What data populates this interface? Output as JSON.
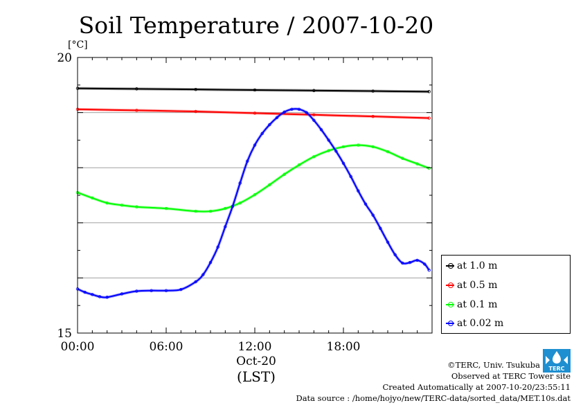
{
  "chart_data": {
    "type": "line",
    "title": "Soil Temperature / 2007-10-20",
    "ylabel": "[°C]",
    "xlabel_date": "Oct-20",
    "xlabel_tz": "(LST)",
    "ylim": [
      15,
      20
    ],
    "xlim": [
      0,
      24
    ],
    "y_ticks": [
      "15",
      "20"
    ],
    "x_ticks": [
      {
        "x": 0,
        "label": "00:00"
      },
      {
        "x": 6,
        "label": "06:00"
      },
      {
        "x": 12,
        "label": "12:00"
      },
      {
        "x": 18,
        "label": "18:00"
      }
    ],
    "grid": "horizontal",
    "legend_position": "right",
    "series": [
      {
        "name": "at 1.0 m",
        "color": "#000000",
        "x": [
          0,
          4,
          8,
          12,
          16,
          20,
          23.8
        ],
        "y": [
          19.44,
          19.43,
          19.42,
          19.41,
          19.4,
          19.39,
          19.38
        ]
      },
      {
        "name": "at 0.5 m",
        "color": "#ff0000",
        "x": [
          0,
          4,
          8,
          12,
          16,
          20,
          23.8
        ],
        "y": [
          19.06,
          19.04,
          19.02,
          18.99,
          18.96,
          18.93,
          18.9
        ]
      },
      {
        "name": "at 0.1 m",
        "color": "#00ff00",
        "x": [
          0,
          1,
          2,
          3,
          4,
          6,
          8,
          9,
          10,
          11,
          12,
          13,
          14,
          15,
          16,
          17,
          18,
          19,
          20,
          21,
          22,
          23,
          23.8
        ],
        "y": [
          17.55,
          17.45,
          17.36,
          17.32,
          17.29,
          17.26,
          17.21,
          17.21,
          17.26,
          17.36,
          17.51,
          17.69,
          17.88,
          18.05,
          18.2,
          18.31,
          18.38,
          18.41,
          18.38,
          18.29,
          18.17,
          18.07,
          17.99
        ]
      },
      {
        "name": "at 0.02 m",
        "color": "#0000ff",
        "x": [
          0,
          0.5,
          1,
          1.5,
          2,
          3,
          4,
          5,
          6,
          7,
          8,
          8.5,
          9,
          9.5,
          10,
          10.5,
          11,
          11.5,
          12,
          12.5,
          13,
          13.5,
          14,
          14.5,
          15,
          15.5,
          16,
          16.5,
          17,
          17.5,
          18,
          18.5,
          19,
          19.5,
          20,
          20.5,
          21,
          21.5,
          22,
          22.5,
          23,
          23.5,
          23.8
        ],
        "y": [
          15.8,
          15.74,
          15.7,
          15.66,
          15.65,
          15.71,
          15.76,
          15.77,
          15.77,
          15.79,
          15.93,
          16.06,
          16.28,
          16.56,
          16.93,
          17.3,
          17.72,
          18.12,
          18.41,
          18.62,
          18.78,
          18.91,
          19.01,
          19.06,
          19.06,
          19.0,
          18.86,
          18.69,
          18.5,
          18.3,
          18.08,
          17.84,
          17.58,
          17.34,
          17.14,
          16.9,
          16.65,
          16.42,
          16.27,
          16.28,
          16.32,
          16.25,
          16.14
        ]
      }
    ]
  },
  "legend": {
    "items": [
      {
        "label": "at 1.0 m",
        "color": "#000000"
      },
      {
        "label": "at 0.5 m",
        "color": "#ff0000"
      },
      {
        "label": "at 0.1 m",
        "color": "#00ff00"
      },
      {
        "label": "at 0.02 m",
        "color": "#0000ff"
      }
    ]
  },
  "credits": {
    "copyright": "©TERC, Univ. Tsukuba",
    "observed": "Observed at TERC Tower site",
    "created": "Created Automatically at 2007-10-20/23:55:11",
    "source": "Data source : /home/hojyo/new/TERC-data/sorted_data/MET.10s.dat"
  },
  "logo_text": "TERC",
  "logo_icon": "terc-logo-icon"
}
